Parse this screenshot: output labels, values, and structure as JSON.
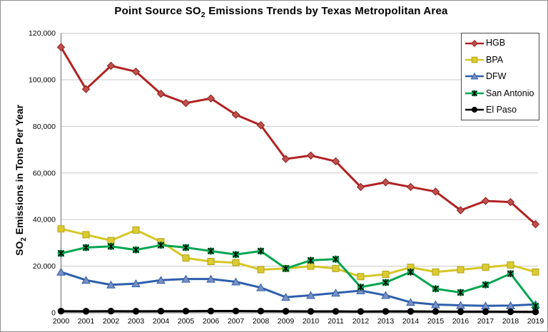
{
  "chart_data": {
    "type": "line",
    "title": {
      "prefix": "Point Source SO",
      "sub": "2",
      "suffix": " Emissions Trends by Texas Metropolitan Area"
    },
    "ylabel": {
      "prefix": "SO",
      "sub": "2",
      "suffix": " Emissions in Tons Per Year"
    },
    "xlabel": "",
    "x": [
      2000,
      2001,
      2002,
      2003,
      2004,
      2005,
      2006,
      2007,
      2008,
      2009,
      2010,
      2011,
      2012,
      2013,
      2014,
      2015,
      2016,
      2017,
      2018,
      2019
    ],
    "x_tick_labels": [
      "2000",
      "2001",
      "2002",
      "2003",
      "2004",
      "2005",
      "2006",
      "2007",
      "2008",
      "2009",
      "2010",
      "2011",
      "2012",
      "2013",
      "2014",
      "2015",
      "2016",
      "2017",
      "2018",
      "2019"
    ],
    "ylim": [
      0,
      120000
    ],
    "y_step": 20000,
    "y_tick_labels": [
      "0",
      "20,000",
      "40,000",
      "60,000",
      "80,000",
      "100,000",
      "120,000"
    ],
    "grid": "horizontal",
    "legend_position": "top-right",
    "colors": {
      "gridline": "#c9c9c9",
      "axis": "#7f7f7f",
      "text": "#000000"
    },
    "series": [
      {
        "name": "HGB",
        "color": "#b22222",
        "marker": "diamond",
        "marker_fill": "#c0504d",
        "marker_stroke": "#8c1f1a",
        "values": [
          114000,
          96000,
          106000,
          103500,
          94000,
          90000,
          92000,
          85000,
          80500,
          66000,
          67500,
          65000,
          54000,
          56000,
          54000,
          52000,
          44000,
          48000,
          47500,
          38000
        ]
      },
      {
        "name": "BPA",
        "color": "#d6c626",
        "marker": "square",
        "marker_fill": "#dbcb31",
        "marker_stroke": "#b0a018",
        "values": [
          36000,
          33500,
          31000,
          35500,
          30500,
          23500,
          22000,
          21500,
          18500,
          19000,
          20000,
          19000,
          15500,
          16500,
          19500,
          17500,
          18500,
          19500,
          20500,
          17500
        ]
      },
      {
        "name": "DFW",
        "color": "#2e5fac",
        "marker": "triangle",
        "marker_fill": "#7b8fc0",
        "marker_stroke": "#2e5fac",
        "values": [
          17500,
          14000,
          12000,
          12500,
          14000,
          14500,
          14500,
          13300,
          10800,
          6700,
          7500,
          8500,
          9500,
          7500,
          4500,
          3500,
          3200,
          3000,
          3100,
          3600
        ]
      },
      {
        "name": "San Antonio",
        "color": "#00a550",
        "marker": "xstar",
        "marker_fill": "#00a550",
        "marker_stroke": "#000000",
        "values": [
          25500,
          28000,
          28500,
          27000,
          29000,
          28000,
          26500,
          25000,
          26500,
          19000,
          22500,
          23000,
          11000,
          13000,
          17500,
          10300,
          8700,
          12000,
          16800,
          2900
        ]
      },
      {
        "name": "El Paso",
        "color": "#000000",
        "marker": "circle",
        "marker_fill": "#000000",
        "marker_stroke": "#000000",
        "values": [
          700,
          650,
          700,
          650,
          700,
          700,
          750,
          750,
          700,
          650,
          600,
          600,
          550,
          600,
          600,
          550,
          500,
          500,
          450,
          400
        ]
      }
    ]
  }
}
